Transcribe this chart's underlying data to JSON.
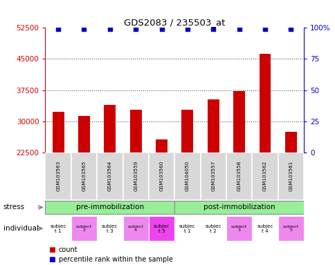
{
  "title": "GDS2083 / 235503_at",
  "samples": [
    "GSM103563",
    "GSM103565",
    "GSM103564",
    "GSM103559",
    "GSM103560",
    "GSM104050",
    "GSM103557",
    "GSM103558",
    "GSM103562",
    "GSM103561"
  ],
  "counts": [
    32200,
    31200,
    34000,
    32700,
    25700,
    32700,
    35200,
    37200,
    46200,
    27500
  ],
  "percentile_ranks": [
    100,
    100,
    100,
    100,
    100,
    100,
    100,
    100,
    100,
    100
  ],
  "ylim_left": [
    22500,
    52500
  ],
  "ylim_right": [
    0,
    100
  ],
  "yticks_left": [
    22500,
    30000,
    37500,
    45000,
    52500
  ],
  "yticks_right": [
    0,
    25,
    50,
    75,
    100
  ],
  "bar_color": "#cc0000",
  "dot_color": "#0000cc",
  "stress_groups": [
    {
      "label": "pre-immobilization",
      "start": 0,
      "end": 5,
      "color": "#99ee99"
    },
    {
      "label": "post-immobilization",
      "start": 5,
      "end": 10,
      "color": "#99ee99"
    }
  ],
  "individuals": [
    {
      "label": "subjec\nt 1",
      "bg": "#ffffff",
      "small": false
    },
    {
      "label": "subject\n2",
      "bg": "#ee88ee",
      "small": true
    },
    {
      "label": "subjec\nt 3",
      "bg": "#ffffff",
      "small": false
    },
    {
      "label": "subject\n4",
      "bg": "#ee88ee",
      "small": true
    },
    {
      "label": "subjec\nt 5",
      "bg": "#ee44ee",
      "small": false
    },
    {
      "label": "subjec\nt 1",
      "bg": "#ffffff",
      "small": false
    },
    {
      "label": "subjec\nt 2",
      "bg": "#ffffff",
      "small": false
    },
    {
      "label": "subject\n3",
      "bg": "#ee88ee",
      "small": true
    },
    {
      "label": "subjec\nt 4",
      "bg": "#ffffff",
      "small": false
    },
    {
      "label": "subject\n5",
      "bg": "#ee88ee",
      "small": true
    }
  ],
  "legend_count_color": "#cc0000",
  "legend_rank_color": "#0000cc",
  "yaxis_left_color": "#cc0000",
  "yaxis_right_color": "#0000cc",
  "grid_color": "#555555",
  "sample_box_color": "#d8d8d8",
  "stress_border_color": "#888888"
}
